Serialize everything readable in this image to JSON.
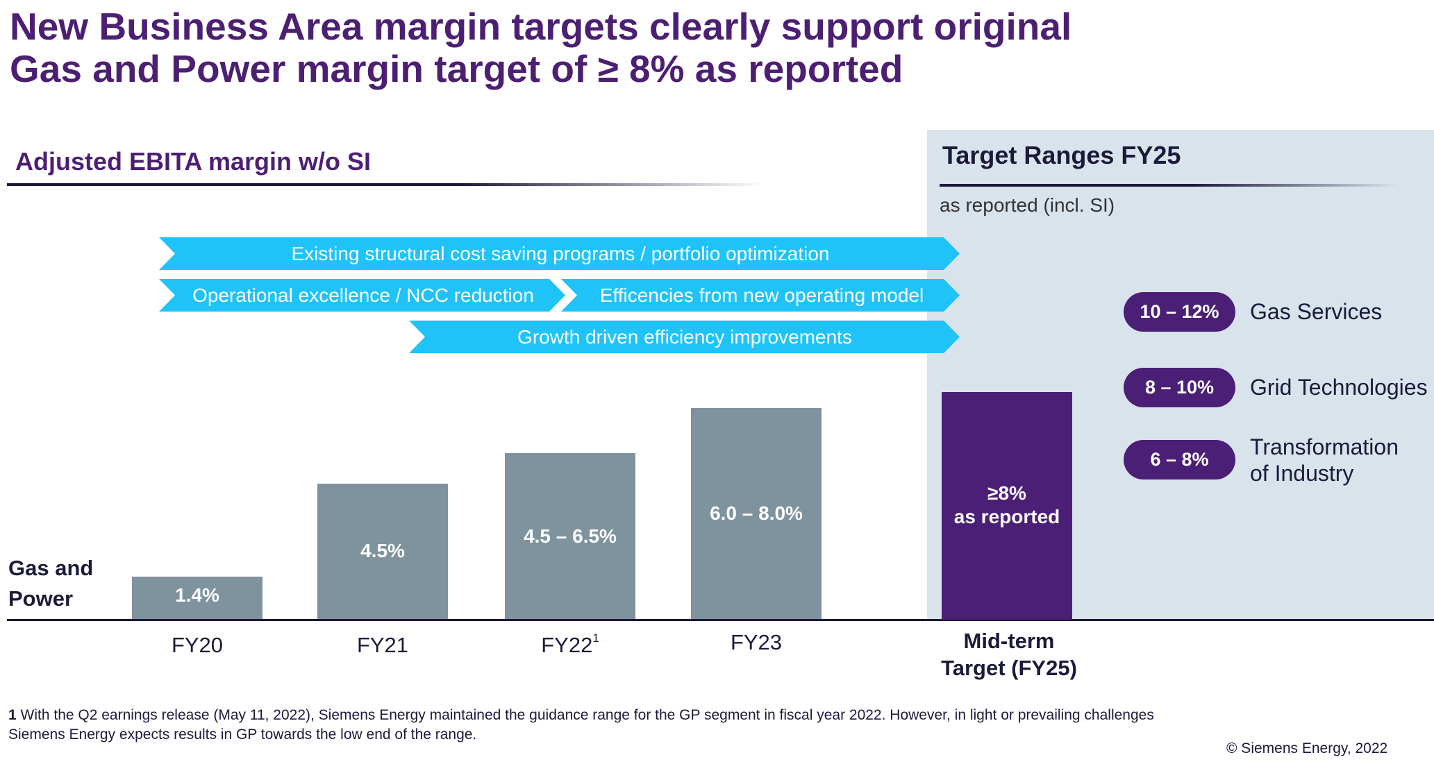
{
  "title": "New Business Area margin targets clearly support original\nGas and Power margin target of ≥ 8% as reported",
  "section_label": "Adjusted EBITA margin w/o SI",
  "target_panel": {
    "title": "Target Ranges FY25",
    "subtitle": "as reported (incl. SI)",
    "segments": [
      {
        "range": "10 – 12%",
        "name": "Gas Services"
      },
      {
        "range": "8 – 10%",
        "name": "Grid Technologies"
      },
      {
        "range": "6 – 8%",
        "name": "Transformation\nof Industry"
      }
    ]
  },
  "arrows": [
    "Existing structural cost saving programs / portfolio optimization",
    "Operational excellence / NCC reduction",
    "Efficencies from new operating model",
    "Growth driven efficiency improvements"
  ],
  "row_label": "Gas and\nPower",
  "footnote": {
    "marker": "1",
    "text": " With the Q2 earnings release (May 11, 2022), Siemens Energy maintained the guidance range for the GP segment in fiscal year 2022. However, in light or prevailing challenges\nSiemens Energy expects results in GP towards the low end of the range."
  },
  "copyright": "© Siemens Energy, 2022",
  "colors": {
    "title": "#4d1f73",
    "arrow": "#1fc3f7",
    "bar": "#7f939e",
    "target_bar": "#4c1f76",
    "panel": "#d9e3ec"
  },
  "chart_data": {
    "type": "bar",
    "categories": [
      "FY20",
      "FY21",
      "FY22",
      "FY23",
      "Mid-term\nTarget (FY25)"
    ],
    "category_footnotes": [
      "",
      "",
      "1",
      "",
      ""
    ],
    "values": [
      1.4,
      4.5,
      5.5,
      7.0,
      8.0
    ],
    "ranges": [
      null,
      null,
      [
        4.5,
        6.5
      ],
      [
        6.0,
        8.0
      ],
      null
    ],
    "labels": [
      "1.4%",
      "4.5%",
      "4.5 – 6.5%",
      "6.0 – 8.0%",
      "≥8%\nas reported"
    ],
    "ylabel": "Adjusted EBITA margin w/o SI",
    "unit": "%"
  }
}
